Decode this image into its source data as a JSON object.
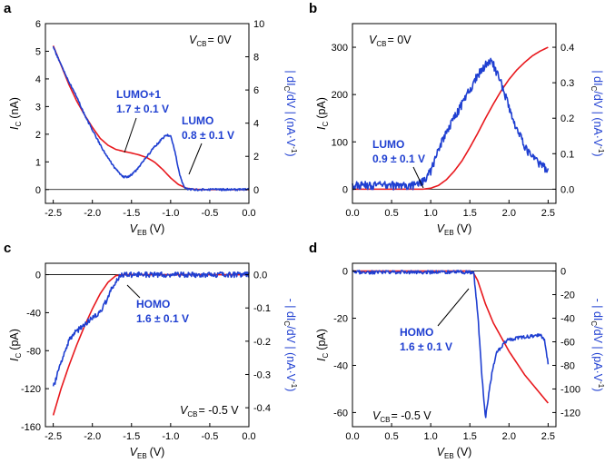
{
  "colors": {
    "current": "#e8181d",
    "derivative": "#1f3fd1",
    "axis": "#000000",
    "baseline": "#000000"
  },
  "chart_data": [
    {
      "type": "line",
      "panel": "a",
      "xlabel_main": "V",
      "xlabel_sub": "EB",
      "xlabel_unit": "(V)",
      "ylabel_main": "I",
      "ylabel_sub": "C",
      "ylabel_unit": "(nA)",
      "y2label_text": "| dI",
      "y2label_sub": "C",
      "y2label_rest": "/dV | (nA·V",
      "y2label_sup": "-1",
      "y2label_end": ")",
      "xlim": [
        -2.6,
        0.0
      ],
      "xticks": [
        -2.5,
        -2.0,
        -1.5,
        -1.0,
        -0.5,
        0.0
      ],
      "xtick_labels": [
        "-2.5",
        "-2.0",
        "-1.5",
        "-1.0",
        "-0.5",
        "0.0"
      ],
      "ylim": [
        -0.5,
        6
      ],
      "yticks": [
        0,
        1,
        2,
        3,
        4,
        5,
        6
      ],
      "ytick_labels": [
        "0",
        "1",
        "2",
        "3",
        "4",
        "5",
        "6"
      ],
      "y2lim": [
        -0.833,
        10
      ],
      "y2ticks": [
        0,
        2,
        4,
        6,
        8,
        10
      ],
      "y2tick_labels": [
        "0",
        "2",
        "4",
        "6",
        "8",
        "10"
      ],
      "baseline": 0,
      "vcb_main": "V",
      "vcb_sub": "CB",
      "vcb_rest": "= 0V",
      "series": [
        {
          "name": "I_C",
          "axis": "left",
          "noise": 0,
          "x": [
            -2.5,
            -2.4,
            -2.3,
            -2.2,
            -2.1,
            -2.0,
            -1.9,
            -1.8,
            -1.7,
            -1.6,
            -1.5,
            -1.4,
            -1.3,
            -1.2,
            -1.1,
            -1.0,
            -0.9,
            -0.8,
            -0.7,
            -0.6,
            -0.5,
            -0.4,
            -0.3,
            -0.2,
            -0.1,
            0.0
          ],
          "values": [
            5.2,
            4.5,
            3.8,
            3.2,
            2.7,
            2.25,
            1.85,
            1.6,
            1.45,
            1.38,
            1.32,
            1.25,
            1.15,
            0.98,
            0.72,
            0.42,
            0.18,
            0.05,
            0.01,
            0,
            0,
            0,
            0,
            0,
            0,
            0
          ]
        },
        {
          "name": "dI_C/dV",
          "axis": "right",
          "noise": 0.06,
          "x": [
            -2.5,
            -2.4,
            -2.3,
            -2.2,
            -2.1,
            -2.0,
            -1.9,
            -1.8,
            -1.7,
            -1.6,
            -1.55,
            -1.5,
            -1.45,
            -1.4,
            -1.3,
            -1.2,
            -1.1,
            -1.05,
            -1.0,
            -0.95,
            -0.9,
            -0.85,
            -0.8,
            -0.7,
            -0.6,
            -0.5,
            -0.4,
            -0.3,
            -0.2,
            -0.1,
            0.0
          ],
          "values": [
            8.6,
            7.5,
            6.5,
            5.6,
            4.5,
            3.6,
            2.7,
            1.9,
            1.2,
            0.75,
            0.75,
            0.9,
            1.1,
            1.4,
            2.0,
            2.6,
            3.1,
            3.3,
            3.2,
            2.4,
            1.2,
            0.35,
            0.05,
            0,
            0,
            0,
            0,
            0,
            0,
            0,
            0
          ]
        }
      ],
      "annotations": [
        {
          "line1": "LUMO+1",
          "line2": "1.7 ± 0.1 V"
        },
        {
          "line1": "LUMO",
          "line2": "0.8 ± 0.1 V"
        }
      ]
    },
    {
      "type": "line",
      "panel": "b",
      "xlabel_main": "V",
      "xlabel_sub": "EB",
      "xlabel_unit": "(V)",
      "ylabel_main": "I",
      "ylabel_sub": "C",
      "ylabel_unit": "(pA)",
      "y2label_text": "| dI",
      "y2label_sub": "C",
      "y2label_rest": "/dV | (nA·V",
      "y2label_sup": "-1",
      "y2label_end": ")",
      "xlim": [
        0.0,
        2.6
      ],
      "xticks": [
        0.0,
        0.5,
        1.0,
        1.5,
        2.0,
        2.5
      ],
      "xtick_labels": [
        "0.0",
        "0.5",
        "1.0",
        "1.5",
        "2.0",
        "2.5"
      ],
      "ylim": [
        -30,
        350
      ],
      "yticks": [
        0,
        100,
        200,
        300
      ],
      "ytick_labels": [
        "0",
        "100",
        "200",
        "300"
      ],
      "y2lim": [
        -0.04,
        0.4667
      ],
      "y2ticks": [
        0.0,
        0.1,
        0.2,
        0.3,
        0.4
      ],
      "y2tick_labels": [
        "0.0",
        "0.1",
        "0.2",
        "0.3",
        "0.4"
      ],
      "baseline": 0,
      "vcb_main": "V",
      "vcb_sub": "CB",
      "vcb_rest": "= 0V",
      "series": [
        {
          "name": "I_C",
          "axis": "left",
          "noise": 0,
          "x": [
            0.0,
            0.5,
            0.9,
            1.0,
            1.1,
            1.2,
            1.3,
            1.4,
            1.5,
            1.6,
            1.7,
            1.8,
            1.9,
            2.0,
            2.1,
            2.2,
            2.3,
            2.4,
            2.5
          ],
          "values": [
            0,
            0,
            0,
            2,
            8,
            20,
            38,
            60,
            88,
            118,
            150,
            180,
            208,
            232,
            252,
            268,
            282,
            292,
            300
          ]
        },
        {
          "name": "dI_C/dV",
          "axis": "right",
          "noise": 0.012,
          "x": [
            0.0,
            0.5,
            0.8,
            0.9,
            1.0,
            1.1,
            1.2,
            1.3,
            1.4,
            1.5,
            1.6,
            1.7,
            1.75,
            1.8,
            1.9,
            2.0,
            2.1,
            2.2,
            2.3,
            2.4,
            2.5
          ],
          "values": [
            0.01,
            0.01,
            0.01,
            0.02,
            0.05,
            0.11,
            0.16,
            0.2,
            0.24,
            0.28,
            0.32,
            0.35,
            0.36,
            0.35,
            0.3,
            0.23,
            0.17,
            0.12,
            0.09,
            0.07,
            0.05
          ]
        }
      ],
      "annotations": [
        {
          "line1": "LUMO",
          "line2": "0.9 ± 0.1 V"
        }
      ]
    },
    {
      "type": "line",
      "panel": "c",
      "xlabel_main": "V",
      "xlabel_sub": "EB",
      "xlabel_unit": "(V)",
      "ylabel_main": "I",
      "ylabel_sub": "C",
      "ylabel_unit": "(pA)",
      "y2label_text": "- | dI",
      "y2label_sub": "C",
      "y2label_rest": "/dV | (nA·V",
      "y2label_sup": "-1",
      "y2label_end": ")",
      "xlim": [
        -2.6,
        0.0
      ],
      "xticks": [
        -2.5,
        -2.0,
        -1.5,
        -1.0,
        -0.5,
        0.0
      ],
      "xtick_labels": [
        "-2.5",
        "-2.0",
        "-1.5",
        "-1.0",
        "-0.5",
        "0.0"
      ],
      "ylim": [
        -160,
        12
      ],
      "yticks": [
        0,
        -40,
        -80,
        -120,
        -160
      ],
      "ytick_labels": [
        "0",
        "-40",
        "-80",
        "-120",
        "-160"
      ],
      "y2lim": [
        -0.457,
        0.0343
      ],
      "y2ticks": [
        0.0,
        -0.1,
        -0.2,
        -0.3,
        -0.4
      ],
      "y2tick_labels": [
        "0.0",
        "-0.1",
        "-0.2",
        "-0.3",
        "-0.4"
      ],
      "baseline": 0,
      "vcb_main": "V",
      "vcb_sub": "CB",
      "vcb_rest": "= -0.5 V",
      "series": [
        {
          "name": "I_C",
          "axis": "left",
          "noise": 0,
          "x": [
            -2.5,
            -2.4,
            -2.3,
            -2.2,
            -2.1,
            -2.0,
            -1.9,
            -1.8,
            -1.7,
            -1.6,
            -1.5,
            0.0
          ],
          "values": [
            -148,
            -120,
            -96,
            -74,
            -54,
            -36,
            -20,
            -8,
            -1,
            0,
            0,
            0
          ]
        },
        {
          "name": "dI_C/dV",
          "axis": "right",
          "noise": 0.008,
          "x": [
            -2.5,
            -2.45,
            -2.4,
            -2.35,
            -2.3,
            -2.25,
            -2.2,
            -2.15,
            -2.1,
            -2.05,
            -2.0,
            -1.95,
            -1.9,
            -1.85,
            -1.8,
            -1.75,
            -1.7,
            -1.65,
            -1.6,
            -1.5,
            -1.0,
            -0.5,
            0.0
          ],
          "values": [
            -0.34,
            -0.3,
            -0.26,
            -0.23,
            -0.2,
            -0.18,
            -0.17,
            -0.16,
            -0.15,
            -0.14,
            -0.13,
            -0.12,
            -0.11,
            -0.09,
            -0.07,
            -0.04,
            -0.02,
            -0.005,
            0.0,
            0.0,
            0.0,
            0.0,
            0.0
          ]
        }
      ],
      "annotations": [
        {
          "line1": "HOMO",
          "line2": "1.6 ± 0.1 V"
        }
      ]
    },
    {
      "type": "line",
      "panel": "d",
      "xlabel_main": "V",
      "xlabel_sub": "EB",
      "xlabel_unit": "(V)",
      "ylabel_main": "I",
      "ylabel_sub": "C",
      "ylabel_unit": "(pA)",
      "y2label_text": "- | dI",
      "y2label_sub": "C",
      "y2label_rest": "/dV | (pA·V",
      "y2label_sup": "-1",
      "y2label_end": ")",
      "xlim": [
        0.0,
        2.6
      ],
      "xticks": [
        0.0,
        0.5,
        1.0,
        1.5,
        2.0,
        2.5
      ],
      "xtick_labels": [
        "0.0",
        "0.5",
        "1.0",
        "1.5",
        "2.0",
        "2.5"
      ],
      "ylim": [
        -66,
        3.3
      ],
      "yticks": [
        0,
        -20,
        -40,
        -60
      ],
      "ytick_labels": [
        "0",
        "-20",
        "-40",
        "-60"
      ],
      "y2lim": [
        -132,
        6.6
      ],
      "y2ticks": [
        0,
        -20,
        -40,
        -60,
        -80,
        -100,
        -120
      ],
      "y2tick_labels": [
        "0",
        "-20",
        "-40",
        "-60",
        "-80",
        "-100",
        "-120"
      ],
      "baseline": 0,
      "vcb_main": "V",
      "vcb_sub": "CB",
      "vcb_rest": "= -0.5 V",
      "series": [
        {
          "name": "I_C",
          "axis": "left",
          "noise": 0,
          "x": [
            0.0,
            1.5,
            1.55,
            1.6,
            1.65,
            1.7,
            1.8,
            1.9,
            2.0,
            2.1,
            2.2,
            2.3,
            2.4,
            2.5
          ],
          "values": [
            0,
            0,
            -1,
            -4,
            -9,
            -14,
            -22,
            -28,
            -34,
            -39,
            -44,
            -48,
            -52,
            -56
          ]
        },
        {
          "name": "dI_C/dV",
          "axis": "right",
          "noise": 1.5,
          "x": [
            0.0,
            1.5,
            1.55,
            1.6,
            1.65,
            1.7,
            1.75,
            1.8,
            1.85,
            1.9,
            1.95,
            2.0,
            2.1,
            2.2,
            2.3,
            2.4,
            2.45,
            2.5
          ],
          "values": [
            -1,
            -1,
            -2,
            -35,
            -85,
            -125,
            -100,
            -80,
            -68,
            -65,
            -60,
            -58,
            -57,
            -56,
            -55,
            -54,
            -58,
            -78
          ]
        }
      ],
      "annotations": [
        {
          "line1": "HOMO",
          "line2": "1.6 ± 0.1 V"
        }
      ]
    }
  ]
}
